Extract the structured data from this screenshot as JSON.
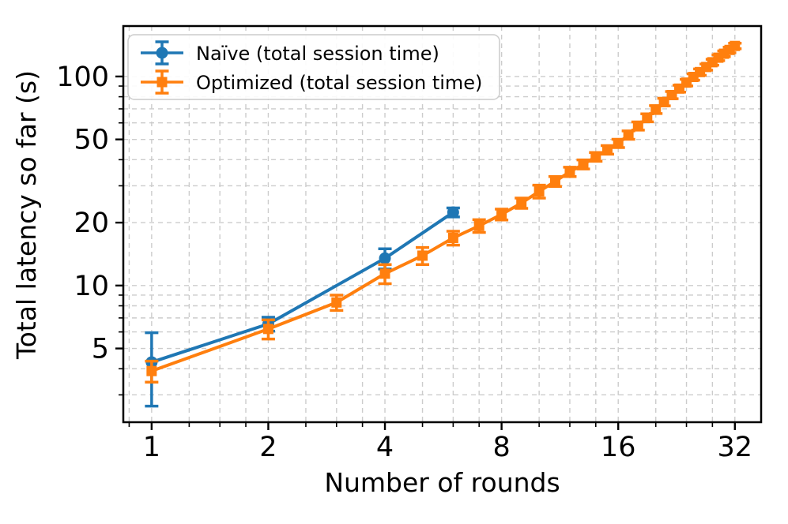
{
  "chart_data": {
    "type": "line",
    "title": "",
    "xlabel": "Number of rounds",
    "ylabel": "Total latency so far (s)",
    "x_scale": "log2",
    "y_scale": "log10",
    "xlim": [
      0.845,
      37.4
    ],
    "ylim": [
      2.22,
      174.3
    ],
    "grid": true,
    "grid_style": "dashed",
    "grid_color": "#cccccc",
    "legend_position": "upper left",
    "x_major_ticks": [
      1,
      2,
      4,
      8,
      16,
      32
    ],
    "x_minor_ticks": [
      0.875,
      1.25,
      1.5,
      1.75,
      2.5,
      3,
      3.5,
      5,
      6,
      7,
      10,
      12,
      14,
      20,
      24,
      28
    ],
    "y_tick_labels": [
      5,
      10,
      20,
      50,
      100
    ],
    "y_grid_values": [
      3,
      4,
      5,
      6,
      7,
      8,
      9,
      10,
      20,
      30,
      40,
      50,
      60,
      70,
      80,
      90,
      100
    ],
    "series": [
      {
        "name": "Naïve (total session time)",
        "color": "#1f77b4",
        "marker": "circle",
        "x": [
          1,
          2,
          4,
          6
        ],
        "y": [
          4.3,
          6.55,
          13.5,
          22.4
        ],
        "yerr": [
          1.65,
          0.5,
          1.5,
          1.1
        ]
      },
      {
        "name": "Optimized (total session time)",
        "color": "#ff7f0e",
        "marker": "square",
        "x": [
          1,
          2,
          3,
          4,
          5,
          6,
          7,
          8,
          9,
          10,
          11,
          12,
          13,
          14,
          15,
          16,
          17,
          18,
          19,
          20,
          21,
          22,
          23,
          24,
          25,
          26,
          27,
          28,
          29,
          30,
          31,
          32
        ],
        "y": [
          3.9,
          6.2,
          8.3,
          11.4,
          13.9,
          16.9,
          19.3,
          21.9,
          24.8,
          28.2,
          31.5,
          35.0,
          38.0,
          41.3,
          44.6,
          47.9,
          52.5,
          58.0,
          63.5,
          69.5,
          75.5,
          81.5,
          87.5,
          93.5,
          99.5,
          105.0,
          111.0,
          117.0,
          123.0,
          128.5,
          134.0,
          140.0
        ],
        "yerr": [
          0.45,
          0.65,
          0.7,
          1.2,
          1.3,
          1.3,
          1.35,
          1.3,
          1.4,
          2.0,
          1.7,
          1.8,
          1.9,
          2.0,
          2.1,
          2.2,
          2.4,
          2.6,
          2.8,
          3.0,
          3.1,
          3.2,
          3.3,
          3.4,
          3.5,
          3.6,
          3.7,
          3.8,
          3.9,
          4.0,
          4.1,
          4.2
        ]
      }
    ]
  }
}
